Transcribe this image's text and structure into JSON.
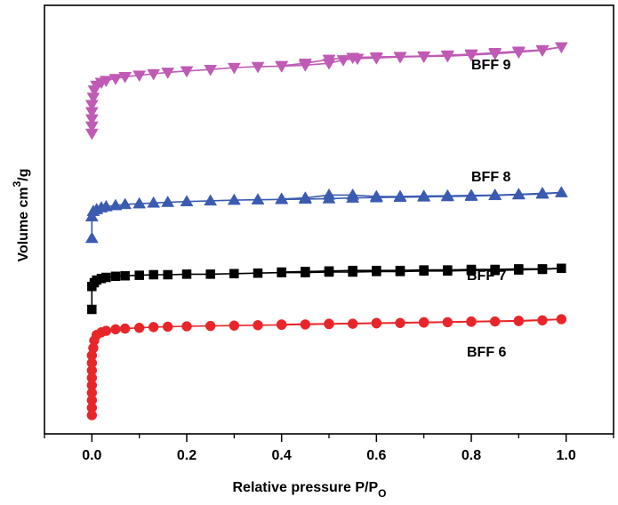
{
  "chart_data": {
    "type": "line",
    "title": "",
    "xlabel": {
      "main": "Relative pressure P/P",
      "sub": "O"
    },
    "ylabel": {
      "main": "Volume cm",
      "sup": "3",
      "tail": "/g"
    },
    "xlim": [
      -0.1,
      1.1
    ],
    "xticks": [
      "0.0",
      "0.2",
      "0.4",
      "0.6",
      "0.8",
      "1.0"
    ],
    "y_tick_labels_shown": false,
    "grid": false,
    "legend": "none (series labelled inline)",
    "series": [
      {
        "name": "BFF 9",
        "marker": "triangle-down",
        "color": "#bf5bb4",
        "points": [
          [
            0.0,
            0.84
          ],
          [
            0.0,
            0.855
          ],
          [
            0.0,
            0.87
          ],
          [
            0.0,
            0.885
          ],
          [
            0.0,
            0.9
          ],
          [
            0.003,
            0.915
          ],
          [
            0.005,
            0.93
          ],
          [
            0.01,
            0.94
          ],
          [
            0.02,
            0.946
          ],
          [
            0.03,
            0.95
          ],
          [
            0.05,
            0.954
          ],
          [
            0.07,
            0.958
          ],
          [
            0.1,
            0.961
          ],
          [
            0.13,
            0.964
          ],
          [
            0.16,
            0.967
          ],
          [
            0.2,
            0.97
          ],
          [
            0.25,
            0.973
          ],
          [
            0.3,
            0.977
          ],
          [
            0.35,
            0.979
          ],
          [
            0.4,
            0.98
          ],
          [
            0.45,
            0.982
          ],
          [
            0.5,
            0.986
          ],
          [
            0.53,
            0.993
          ],
          [
            0.56,
            0.996
          ],
          [
            0.6,
            0.997
          ],
          [
            0.65,
            0.999
          ],
          [
            0.7,
            1.0
          ],
          [
            0.75,
            1.001
          ],
          [
            0.8,
            1.003
          ],
          [
            0.85,
            1.006
          ],
          [
            0.9,
            1.009
          ],
          [
            0.95,
            1.013
          ],
          [
            0.99,
            1.02
          ]
        ],
        "desorption": [
          [
            0.99,
            1.02
          ],
          [
            0.95,
            1.014
          ],
          [
            0.9,
            1.011
          ],
          [
            0.85,
            1.008
          ],
          [
            0.8,
            1.005
          ],
          [
            0.75,
            1.003
          ],
          [
            0.7,
            1.001
          ],
          [
            0.65,
            1.0
          ],
          [
            0.6,
            0.999
          ],
          [
            0.55,
            0.998
          ],
          [
            0.5,
            0.994
          ],
          [
            0.45,
            0.986
          ],
          [
            0.4,
            0.981
          ]
        ]
      },
      {
        "name": "BFF 8",
        "marker": "triangle-up",
        "color": "#3a5bb0",
        "points": [
          [
            0.0,
            0.6
          ],
          [
            0.0,
            0.66
          ],
          [
            0.003,
            0.675
          ],
          [
            0.01,
            0.68
          ],
          [
            0.02,
            0.685
          ],
          [
            0.03,
            0.688
          ],
          [
            0.05,
            0.691
          ],
          [
            0.07,
            0.694
          ],
          [
            0.1,
            0.696
          ],
          [
            0.13,
            0.698
          ],
          [
            0.16,
            0.7
          ],
          [
            0.2,
            0.702
          ],
          [
            0.25,
            0.704
          ],
          [
            0.3,
            0.706
          ],
          [
            0.35,
            0.707
          ],
          [
            0.4,
            0.708
          ],
          [
            0.45,
            0.709
          ],
          [
            0.5,
            0.71
          ],
          [
            0.55,
            0.712
          ],
          [
            0.6,
            0.713
          ],
          [
            0.65,
            0.714
          ],
          [
            0.7,
            0.715
          ],
          [
            0.75,
            0.716
          ],
          [
            0.8,
            0.717
          ],
          [
            0.85,
            0.719
          ],
          [
            0.9,
            0.721
          ],
          [
            0.95,
            0.723
          ],
          [
            0.99,
            0.727
          ]
        ],
        "desorption": [
          [
            0.99,
            0.727
          ],
          [
            0.95,
            0.725
          ],
          [
            0.9,
            0.722
          ],
          [
            0.85,
            0.72
          ],
          [
            0.8,
            0.719
          ],
          [
            0.75,
            0.718
          ],
          [
            0.7,
            0.717
          ],
          [
            0.65,
            0.716
          ],
          [
            0.6,
            0.716
          ],
          [
            0.55,
            0.72
          ],
          [
            0.5,
            0.72
          ],
          [
            0.45,
            0.712
          ],
          [
            0.4,
            0.709
          ]
        ]
      },
      {
        "name": "BFF 7",
        "marker": "square",
        "color": "#000000",
        "points": [
          [
            0.0,
            0.4
          ],
          [
            0.0,
            0.443
          ],
          [
            0.005,
            0.45
          ],
          [
            0.01,
            0.455
          ],
          [
            0.02,
            0.458
          ],
          [
            0.03,
            0.46
          ],
          [
            0.05,
            0.462
          ],
          [
            0.07,
            0.463
          ],
          [
            0.1,
            0.464
          ],
          [
            0.13,
            0.465
          ],
          [
            0.16,
            0.465
          ],
          [
            0.2,
            0.466
          ],
          [
            0.25,
            0.466
          ],
          [
            0.3,
            0.467
          ],
          [
            0.35,
            0.468
          ],
          [
            0.4,
            0.469
          ],
          [
            0.45,
            0.469
          ],
          [
            0.5,
            0.47
          ],
          [
            0.55,
            0.47
          ],
          [
            0.6,
            0.471
          ],
          [
            0.65,
            0.471
          ],
          [
            0.7,
            0.472
          ],
          [
            0.75,
            0.472
          ],
          [
            0.8,
            0.473
          ],
          [
            0.85,
            0.473
          ],
          [
            0.9,
            0.474
          ],
          [
            0.95,
            0.475
          ],
          [
            0.99,
            0.477
          ]
        ],
        "desorption": [
          [
            0.99,
            0.477
          ],
          [
            0.95,
            0.476
          ],
          [
            0.9,
            0.476
          ],
          [
            0.85,
            0.475
          ],
          [
            0.8,
            0.475
          ],
          [
            0.75,
            0.474
          ],
          [
            0.7,
            0.474
          ],
          [
            0.65,
            0.473
          ],
          [
            0.6,
            0.473
          ],
          [
            0.55,
            0.473
          ],
          [
            0.5,
            0.472
          ],
          [
            0.45,
            0.471
          ],
          [
            0.4,
            0.47
          ]
        ]
      },
      {
        "name": "BFF 6",
        "marker": "circle",
        "color": "#e8262a",
        "points": [
          [
            0.0,
            0.0
          ],
          [
            0.0,
            0.02
          ],
          [
            0.0,
            0.04
          ],
          [
            0.0,
            0.06
          ],
          [
            0.0,
            0.08
          ],
          [
            0.0,
            0.1
          ],
          [
            0.0,
            0.12
          ],
          [
            0.0,
            0.14
          ],
          [
            0.0,
            0.16
          ],
          [
            0.003,
            0.18
          ],
          [
            0.005,
            0.2
          ],
          [
            0.01,
            0.215
          ],
          [
            0.02,
            0.222
          ],
          [
            0.03,
            0.226
          ],
          [
            0.05,
            0.23
          ],
          [
            0.07,
            0.232
          ],
          [
            0.1,
            0.234
          ],
          [
            0.13,
            0.236
          ],
          [
            0.16,
            0.237
          ],
          [
            0.2,
            0.238
          ],
          [
            0.25,
            0.239
          ],
          [
            0.3,
            0.24
          ],
          [
            0.35,
            0.241
          ],
          [
            0.4,
            0.242
          ],
          [
            0.45,
            0.243
          ],
          [
            0.5,
            0.244
          ],
          [
            0.55,
            0.245
          ],
          [
            0.6,
            0.246
          ],
          [
            0.65,
            0.247
          ],
          [
            0.7,
            0.248
          ],
          [
            0.75,
            0.249
          ],
          [
            0.8,
            0.25
          ],
          [
            0.85,
            0.251
          ],
          [
            0.9,
            0.252
          ],
          [
            0.95,
            0.254
          ],
          [
            0.99,
            0.257
          ]
        ],
        "desorption": [
          [
            0.99,
            0.257
          ],
          [
            0.9,
            0.253
          ],
          [
            0.8,
            0.251
          ],
          [
            0.7,
            0.249
          ],
          [
            0.6,
            0.247
          ],
          [
            0.5,
            0.245
          ],
          [
            0.4,
            0.243
          ]
        ]
      }
    ]
  }
}
